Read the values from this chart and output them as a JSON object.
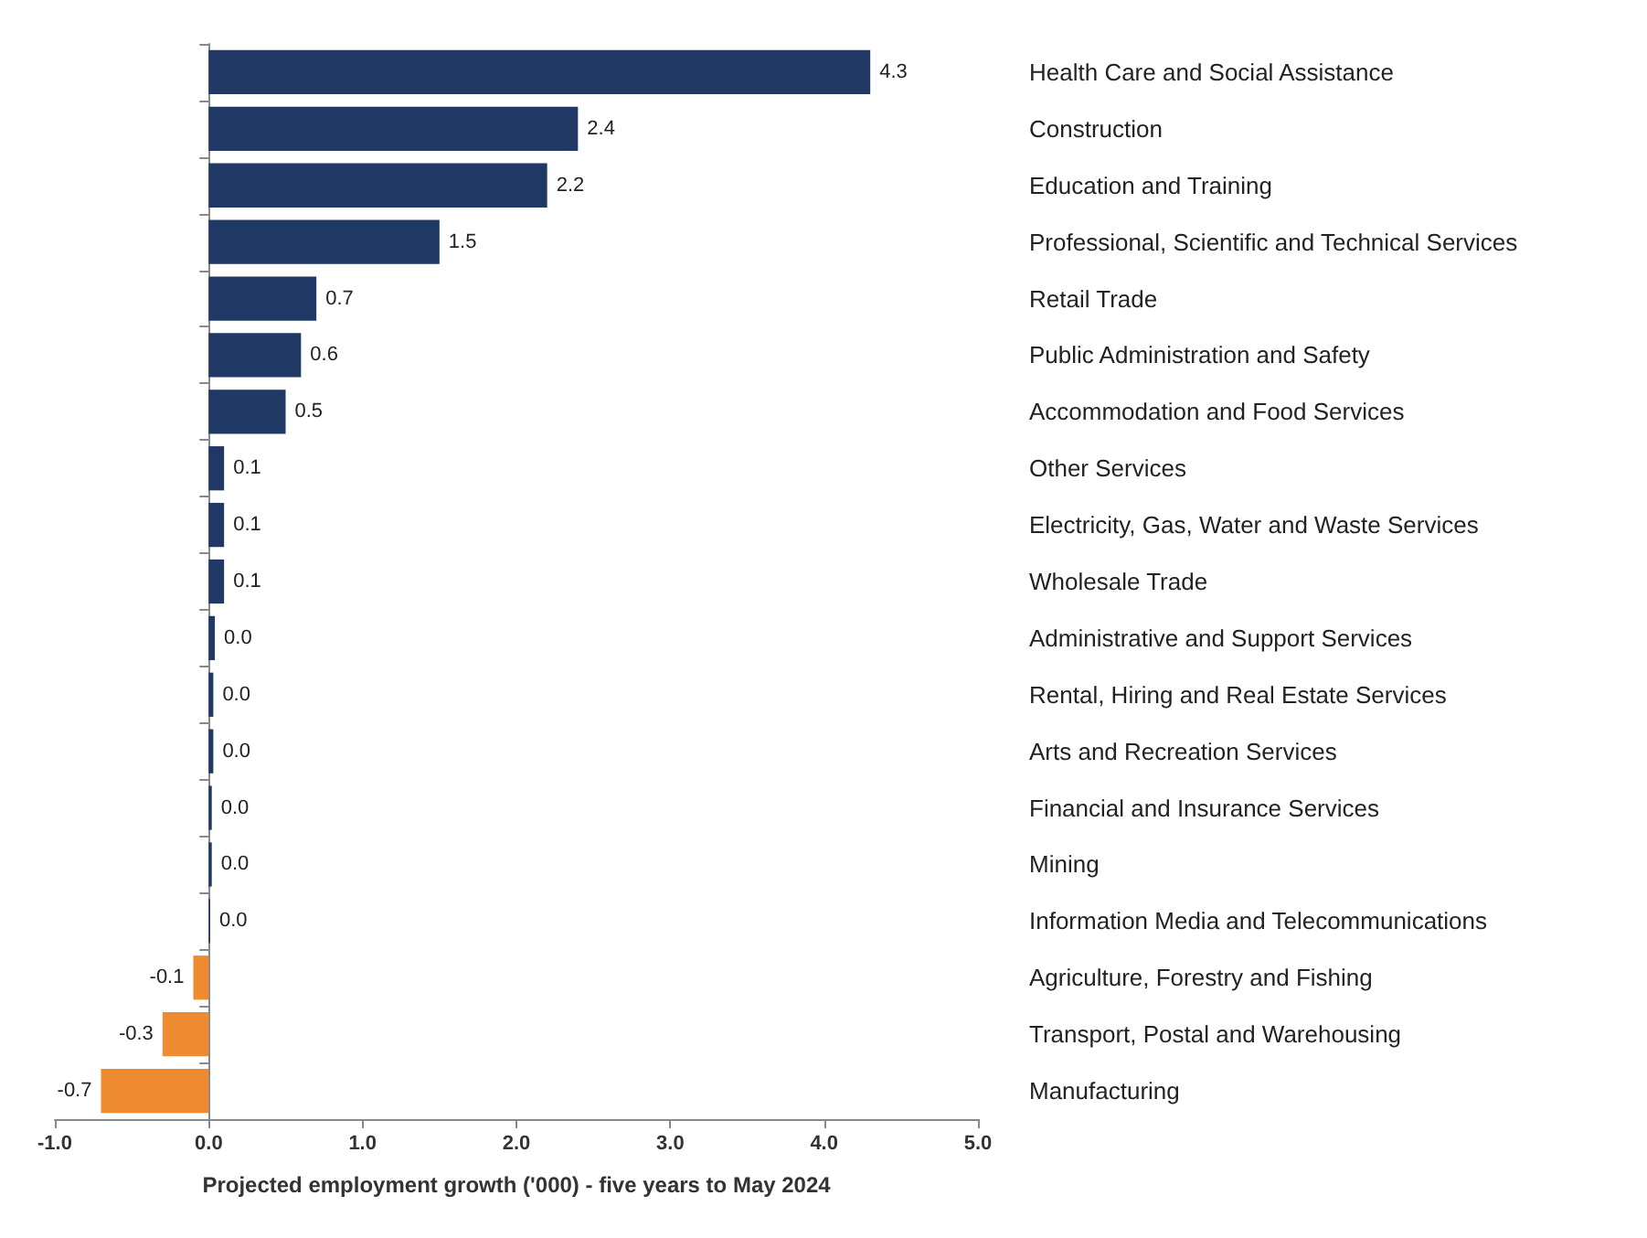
{
  "chart_data": {
    "type": "bar",
    "orientation": "horizontal",
    "xlabel": "Projected employment growth ('000) - five years to May 2024",
    "categories": [
      "Health Care and Social Assistance",
      "Construction",
      "Education and Training",
      "Professional, Scientific and Technical Services",
      "Retail Trade",
      "Public Administration and Safety",
      "Accommodation and Food Services",
      "Other Services",
      "Electricity, Gas, Water and Waste Services",
      "Wholesale Trade",
      "Administrative and Support Services",
      "Rental, Hiring and Real Estate Services",
      "Arts and Recreation Services",
      "Financial and Insurance Services",
      "Mining",
      "Information Media and Telecommunications",
      "Agriculture, Forestry and Fishing",
      "Transport, Postal and Warehousing",
      "Manufacturing"
    ],
    "values": [
      4.3,
      2.4,
      2.2,
      1.5,
      0.7,
      0.6,
      0.5,
      0.1,
      0.1,
      0.1,
      0.04,
      0.03,
      0.03,
      0.02,
      0.02,
      0.01,
      -0.1,
      -0.3,
      -0.7
    ],
    "value_labels": [
      "4.3",
      "2.4",
      "2.2",
      "1.5",
      "0.7",
      "0.6",
      "0.5",
      "0.1",
      "0.1",
      "0.1",
      "0.0",
      "0.0",
      "0.0",
      "0.0",
      "0.0",
      "0.0",
      "-0.1",
      "-0.3",
      "-0.7"
    ],
    "colors": [
      "#1f3864",
      "#1f3864",
      "#1f3864",
      "#1f3864",
      "#1f3864",
      "#1f3864",
      "#1f3864",
      "#1f3864",
      "#1f3864",
      "#1f3864",
      "#1f3864",
      "#1f3864",
      "#1f3864",
      "#1f3864",
      "#1f3864",
      "#1f3864",
      "#ee8a2f",
      "#ee8a2f",
      "#ee8a2f"
    ],
    "xlim": [
      -1,
      5
    ],
    "xticks": [
      {
        "value": -1,
        "label": "-1.0"
      },
      {
        "value": 0,
        "label": "0.0"
      },
      {
        "value": 1,
        "label": "1.0"
      },
      {
        "value": 2,
        "label": "2.0"
      },
      {
        "value": 3,
        "label": "3.0"
      },
      {
        "value": 4,
        "label": "4.0"
      },
      {
        "value": 5,
        "label": "5.0"
      }
    ]
  }
}
